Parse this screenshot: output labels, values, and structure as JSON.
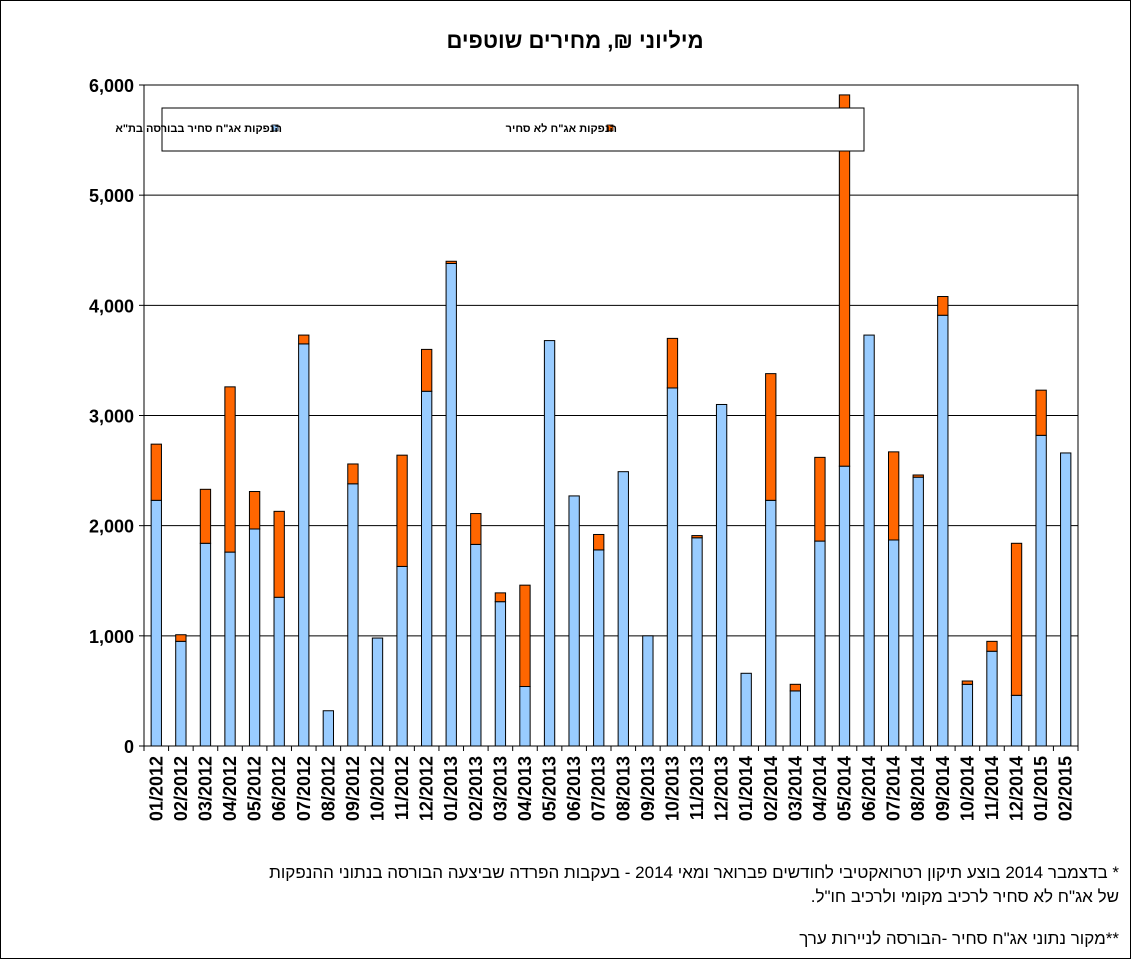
{
  "chart_data": {
    "type": "bar",
    "stacked": true,
    "title": "מיליוני ₪, מחירים שוטפים",
    "ylim": [
      0,
      6000
    ],
    "yticks": [
      "0",
      "1,000",
      "2,000",
      "3,000",
      "4,000",
      "5,000",
      "6,000"
    ],
    "grid": true,
    "legend_position": "top",
    "categories": [
      "01/2012",
      "02/2012",
      "03/2012",
      "04/2012",
      "05/2012",
      "06/2012",
      "07/2012",
      "08/2012",
      "09/2012",
      "10/2012",
      "11/2012",
      "12/2012",
      "01/2013",
      "02/2013",
      "03/2013",
      "04/2013",
      "05/2013",
      "06/2013",
      "07/2013",
      "08/2013",
      "09/2013",
      "10/2013",
      "11/2013",
      "12/2013",
      "01/2014",
      "02/2014",
      "03/2014",
      "04/2014",
      "05/2014",
      "06/2014",
      "07/2014",
      "08/2014",
      "09/2014",
      "10/2014",
      "11/2014",
      "12/2014",
      "01/2015",
      "02/2015"
    ],
    "series": [
      {
        "name": "הנפקות אג\"ח סחיר בבורסה בת\"א",
        "color": "#99ccff",
        "values": [
          2230,
          950,
          1840,
          1760,
          1970,
          1350,
          3650,
          320,
          2380,
          980,
          1630,
          3220,
          4380,
          1830,
          1310,
          540,
          3680,
          2270,
          1780,
          2490,
          1000,
          3250,
          1890,
          3100,
          660,
          2230,
          500,
          1860,
          2540,
          3730,
          1870,
          2440,
          3910,
          560,
          860,
          460,
          2820,
          2660
        ]
      },
      {
        "name": "הנפקות אג\"ח לא סחיר",
        "color": "#ff6600",
        "values": [
          510,
          60,
          490,
          1500,
          340,
          780,
          80,
          0,
          180,
          0,
          1010,
          380,
          20,
          280,
          80,
          920,
          0,
          0,
          140,
          0,
          0,
          450,
          20,
          0,
          0,
          1150,
          60,
          760,
          3370,
          0,
          800,
          20,
          170,
          30,
          90,
          1380,
          410,
          0
        ]
      }
    ]
  },
  "notes": {
    "line1": "* בדצמבר 2014 בוצע תיקון רטרואקטיבי לחודשים פברואר ומאי 2014 - בעקבות הפרדה שביצעה הבורסה בנתוני ההנפקות",
    "line2": "של אג\"ח לא סחיר לרכיב מקומי ולרכיב חו\"ל.",
    "line3": "**מקור נתוני אג\"ח סחיר -הבורסה לניירות ערך"
  }
}
